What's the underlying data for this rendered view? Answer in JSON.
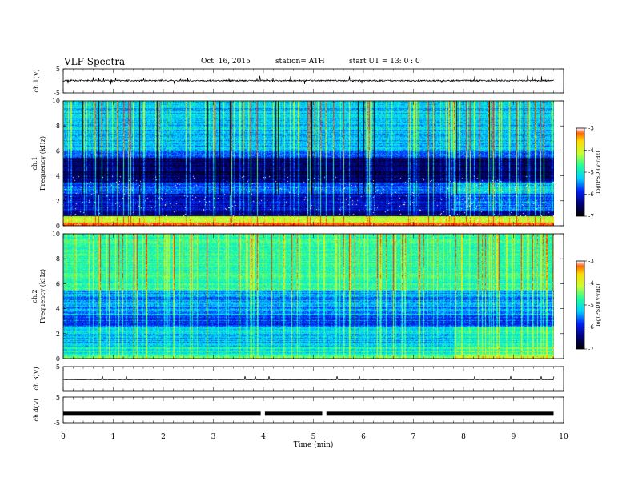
{
  "header": {
    "title": "VLF  Spectra",
    "date": "Oct. 16,  2015",
    "station": "station= ATH",
    "start": "start  UT  =    13: 0  : 0"
  },
  "chart_data": [
    {
      "type": "line",
      "panel": "ch1-waveform",
      "ylabel": "ch.1(V)",
      "ylim": [
        -5,
        5
      ],
      "yticks": [
        "5",
        "-5"
      ],
      "x_range_min": [
        0,
        9.8
      ],
      "description_values": {
        "baseline_v": 0.1,
        "noise_amplitude_v": 0.6,
        "spike_amplitude_v": 1.8
      }
    },
    {
      "type": "heatmap",
      "panel": "ch1-spectrogram",
      "ylabel": "ch.1\nFrequency (kHz)",
      "ylim": [
        0,
        10
      ],
      "yticks": [
        "0",
        "2",
        "4",
        "6",
        "8",
        "10"
      ],
      "colorbar": {
        "label": "log(PSD)(V²/Hz)",
        "range": [
          -7,
          -3
        ],
        "ticks": [
          "-3",
          "-4",
          "-5",
          "-6",
          "-7"
        ]
      },
      "bands_khz": [
        {
          "from": 0,
          "to": 0.3,
          "log_psd": -3.2
        },
        {
          "from": 0.3,
          "to": 0.8,
          "log_psd": -4.2
        },
        {
          "from": 0.8,
          "to": 1.2,
          "log_psd": -6.5
        },
        {
          "from": 1.2,
          "to": 2.6,
          "log_psd": -6.2
        },
        {
          "from": 2.6,
          "to": 3.5,
          "log_psd": -5.8
        },
        {
          "from": 3.5,
          "to": 5.5,
          "log_psd": -6.6
        },
        {
          "from": 5.5,
          "to": 6.0,
          "log_psd": -5.8
        },
        {
          "from": 6.0,
          "to": 10,
          "log_psd": -5.3
        }
      ]
    },
    {
      "type": "heatmap",
      "panel": "ch2-spectrogram",
      "ylabel": "ch.2\nFrequency (kHz)",
      "ylim": [
        0,
        10
      ],
      "yticks": [
        "0",
        "2",
        "4",
        "6",
        "8",
        "10"
      ],
      "colorbar": {
        "label": "log(PSD)(V²/Hz)",
        "range": [
          -7,
          -3
        ],
        "ticks": [
          "-3",
          "-4",
          "-5",
          "-6",
          "-7"
        ]
      },
      "bands_khz": [
        {
          "from": 0,
          "to": 0.3,
          "log_psd": -4.5
        },
        {
          "from": 0.3,
          "to": 1.0,
          "log_psd": -5.0
        },
        {
          "from": 1.0,
          "to": 2.6,
          "log_psd": -5.3
        },
        {
          "from": 2.6,
          "to": 3.5,
          "log_psd": -5.8
        },
        {
          "from": 3.5,
          "to": 5.5,
          "log_psd": -5.5
        },
        {
          "from": 5.5,
          "to": 10,
          "log_psd": -4.8
        }
      ]
    },
    {
      "type": "line",
      "panel": "ch3-waveform",
      "ylabel": "ch.3(V)",
      "ylim": [
        -5,
        5
      ],
      "yticks": [
        "5"
      ],
      "x_range_min": [
        0,
        9.8
      ]
    },
    {
      "type": "line",
      "panel": "ch4-waveform",
      "ylabel": "ch.4(V)",
      "ylim": [
        -5,
        5
      ],
      "yticks": [
        "5",
        "-5"
      ],
      "x_range_min": [
        0,
        9.8
      ],
      "level_v": -1.2,
      "gaps_min": [
        3.97,
        5.2
      ]
    }
  ],
  "x_axis": {
    "label": "Time  (min)",
    "range": [
      0,
      10
    ],
    "ticks": [
      "0",
      "1",
      "2",
      "3",
      "4",
      "5",
      "6",
      "7",
      "8",
      "9",
      "10"
    ]
  },
  "colors": {
    "colormap": [
      "#000000",
      "#00007a",
      "#0022ff",
      "#00d2ff",
      "#20ff9c",
      "#c8ff32",
      "#ffdc00",
      "#ff2400",
      "#ffffff"
    ],
    "trace": "#000000"
  }
}
